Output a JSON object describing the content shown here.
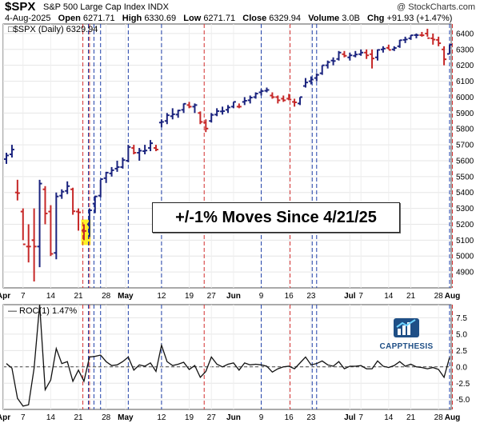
{
  "header": {
    "symbol": "$SPX",
    "description": "S&P 500 Large Cap Index INDX",
    "credit": "@ StockCharts.com",
    "date": "4-Aug-2025",
    "open_label": "Open",
    "open": "6271.71",
    "high_label": "High",
    "high": "6330.69",
    "low_label": "Low",
    "low": "6271.71",
    "close_label": "Close",
    "close": "6329.94",
    "volume_label": "Volume",
    "volume": "3.0B",
    "chg_label": "Chg",
    "chg": "+91.93 (+1.47%)"
  },
  "legend_main": "□$SPX (Daily) 6329.94",
  "legend_roc": "— ROC(1) 1.47%",
  "callout": "+/-1% Moves Since 4/21/25",
  "watermark": "CAPPTHESIS",
  "colors": {
    "up": "#1a237e",
    "down": "#c62828",
    "red_line": "#d32f2f",
    "blue_line": "#1e3fa8",
    "highlight": "#ffee00"
  },
  "chart_data": {
    "type": "ohlc",
    "main": {
      "y_ticks": [
        4900,
        5000,
        5100,
        5200,
        5300,
        5400,
        5500,
        5600,
        5700,
        5800,
        5900,
        6000,
        6100,
        6200,
        6300,
        6400
      ],
      "ylim": [
        4800,
        6460
      ],
      "bars": [
        [
          5610,
          5650,
          5580,
          5633,
          "u"
        ],
        [
          5640,
          5700,
          5620,
          5670,
          "u"
        ],
        [
          5400,
          5480,
          5350,
          5396,
          "d"
        ],
        [
          5280,
          5300,
          5100,
          5074,
          "d"
        ],
        [
          5060,
          5200,
          4960,
          5060,
          "d"
        ],
        [
          5100,
          5300,
          4840,
          5060,
          "d"
        ],
        [
          5060,
          5480,
          4930,
          5456,
          "u"
        ],
        [
          5420,
          5440,
          5200,
          5268,
          "d"
        ],
        [
          5280,
          5320,
          5000,
          5014,
          "d"
        ],
        [
          5020,
          5400,
          4980,
          5375,
          "u"
        ],
        [
          5380,
          5420,
          5360,
          5405,
          "u"
        ],
        [
          5410,
          5470,
          5390,
          5440,
          "u"
        ],
        [
          5420,
          5430,
          5260,
          5282,
          "d"
        ],
        [
          5280,
          5300,
          5160,
          5275,
          "d"
        ],
        [
          5160,
          5200,
          5100,
          5158,
          "d"
        ],
        [
          5200,
          5300,
          5120,
          5288,
          "u"
        ],
        [
          5330,
          5380,
          5270,
          5375,
          "u"
        ],
        [
          5380,
          5480,
          5370,
          5484,
          "u"
        ],
        [
          5490,
          5530,
          5460,
          5525,
          "u"
        ],
        [
          5520,
          5560,
          5500,
          5540,
          "u"
        ],
        [
          5550,
          5600,
          5530,
          5560,
          "u"
        ],
        [
          5560,
          5620,
          5550,
          5604,
          "u"
        ],
        [
          5600,
          5700,
          5590,
          5686,
          "u"
        ],
        [
          5680,
          5700,
          5640,
          5650,
          "d"
        ],
        [
          5650,
          5680,
          5600,
          5663,
          "u"
        ],
        [
          5660,
          5700,
          5640,
          5664,
          "u"
        ],
        [
          5680,
          5730,
          5660,
          5710,
          "u"
        ],
        [
          5680,
          5700,
          5660,
          5670,
          "d"
        ],
        [
          5840,
          5860,
          5810,
          5844,
          "u"
        ],
        [
          5850,
          5900,
          5830,
          5886,
          "u"
        ],
        [
          5880,
          5930,
          5860,
          5892,
          "u"
        ],
        [
          5890,
          5920,
          5870,
          5916,
          "u"
        ],
        [
          5920,
          5960,
          5900,
          5958,
          "u"
        ],
        [
          5950,
          5970,
          5930,
          5940,
          "d"
        ],
        [
          5940,
          5960,
          5900,
          5950,
          "u"
        ],
        [
          5900,
          5910,
          5830,
          5844,
          "d"
        ],
        [
          5840,
          5860,
          5780,
          5802,
          "d"
        ],
        [
          5850,
          5900,
          5840,
          5888,
          "u"
        ],
        [
          5890,
          5930,
          5880,
          5912,
          "u"
        ],
        [
          5910,
          5940,
          5890,
          5912,
          "u"
        ],
        [
          5920,
          5950,
          5900,
          5935,
          "u"
        ],
        [
          5940,
          5970,
          5930,
          5970,
          "u"
        ],
        [
          5940,
          5960,
          5930,
          5940,
          "d"
        ],
        [
          5970,
          6000,
          5950,
          5977,
          "u"
        ],
        [
          5980,
          6010,
          5960,
          5997,
          "u"
        ],
        [
          6000,
          6030,
          5990,
          6022,
          "u"
        ],
        [
          6030,
          6050,
          6010,
          6038,
          "u"
        ],
        [
          6040,
          6060,
          6030,
          6045,
          "u"
        ],
        [
          6010,
          6030,
          5990,
          6000,
          "d"
        ],
        [
          6000,
          6010,
          5960,
          5980,
          "d"
        ],
        [
          5990,
          6010,
          5970,
          5980,
          "d"
        ],
        [
          5990,
          6020,
          5980,
          5985,
          "d"
        ],
        [
          5970,
          5990,
          5940,
          5967,
          "d"
        ],
        [
          5960,
          6000,
          5950,
          6000,
          "u"
        ],
        [
          6070,
          6120,
          6060,
          6092,
          "u"
        ],
        [
          6100,
          6130,
          6080,
          6110,
          "u"
        ],
        [
          6120,
          6150,
          6100,
          6140,
          "u"
        ],
        [
          6150,
          6200,
          6140,
          6200,
          "u"
        ],
        [
          6200,
          6230,
          6180,
          6220,
          "u"
        ],
        [
          6230,
          6250,
          6200,
          6227,
          "u"
        ],
        [
          6240,
          6290,
          6230,
          6280,
          "u"
        ],
        [
          6270,
          6290,
          6250,
          6260,
          "d"
        ],
        [
          6250,
          6280,
          6230,
          6263,
          "u"
        ],
        [
          6260,
          6290,
          6250,
          6268,
          "u"
        ],
        [
          6270,
          6300,
          6260,
          6280,
          "u"
        ],
        [
          6280,
          6300,
          6240,
          6263,
          "d"
        ],
        [
          6270,
          6300,
          6180,
          6243,
          "d"
        ],
        [
          6250,
          6300,
          6230,
          6297,
          "u"
        ],
        [
          6300,
          6320,
          6280,
          6305,
          "u"
        ],
        [
          6310,
          6330,
          6300,
          6297,
          "d"
        ],
        [
          6300,
          6320,
          6290,
          6309,
          "u"
        ],
        [
          6320,
          6360,
          6310,
          6358,
          "u"
        ],
        [
          6360,
          6380,
          6340,
          6363,
          "u"
        ],
        [
          6370,
          6390,
          6360,
          6389,
          "u"
        ],
        [
          6390,
          6400,
          6370,
          6390,
          "u"
        ],
        [
          6390,
          6410,
          6380,
          6389,
          "d"
        ],
        [
          6400,
          6430,
          6380,
          6371,
          "d"
        ],
        [
          6370,
          6400,
          6330,
          6362,
          "d"
        ],
        [
          6360,
          6380,
          6320,
          6339,
          "d"
        ],
        [
          6300,
          6320,
          6200,
          6238,
          "d"
        ],
        [
          6271.71,
          6330.69,
          6271.71,
          6329.94,
          "u"
        ]
      ]
    },
    "roc": {
      "label": "ROC(1)",
      "y_ticks": [
        -5.0,
        -2.5,
        0.0,
        2.5,
        5.0,
        7.5
      ],
      "ylim": [
        -6.5,
        9.5
      ],
      "values": [
        0.5,
        -0.2,
        -4.8,
        -6.0,
        -5.8,
        -0.2,
        9.5,
        -3.5,
        -2.0,
        2.8,
        0.5,
        0.8,
        -2.2,
        -0.5,
        -2.2,
        1.5,
        1.6,
        1.8,
        0.8,
        0.2,
        0.3,
        0.8,
        1.5,
        -0.5,
        0.3,
        0.1,
        0.6,
        -0.7,
        3.3,
        0.8,
        0.2,
        0.4,
        0.7,
        -0.4,
        0.2,
        -1.6,
        -0.7,
        1.5,
        0.4,
        0.0,
        0.4,
        0.6,
        -0.5,
        0.6,
        0.3,
        0.4,
        0.3,
        0.1,
        -0.8,
        -0.3,
        0.0,
        0.1,
        -0.3,
        0.6,
        1.5,
        0.3,
        0.5,
        0.9,
        0.3,
        0.1,
        0.8,
        -0.3,
        0.1,
        0.1,
        0.2,
        -0.3,
        -0.3,
        0.9,
        0.1,
        -0.1,
        0.2,
        0.8,
        0.1,
        0.4,
        0.0,
        -0.1,
        -0.3,
        -0.1,
        -0.4,
        -1.6,
        1.47
      ]
    },
    "x_labels": [
      {
        "bar": -0.5,
        "text": "Apr",
        "month": true
      },
      {
        "bar": 3,
        "text": "7",
        "month": false
      },
      {
        "bar": 8,
        "text": "14",
        "month": false
      },
      {
        "bar": 13,
        "text": "21",
        "month": false
      },
      {
        "bar": 18,
        "text": "28",
        "month": false
      },
      {
        "bar": 21.5,
        "text": "May",
        "month": true
      },
      {
        "bar": 28,
        "text": "12",
        "month": false
      },
      {
        "bar": 33,
        "text": "19",
        "month": false
      },
      {
        "bar": 37,
        "text": "27",
        "month": false
      },
      {
        "bar": 41,
        "text": "Jun",
        "month": true
      },
      {
        "bar": 46,
        "text": "9",
        "month": false
      },
      {
        "bar": 51,
        "text": "16",
        "month": false
      },
      {
        "bar": 55,
        "text": "23",
        "month": false
      },
      {
        "bar": 62,
        "text": "Jul",
        "month": true
      },
      {
        "bar": 64,
        "text": "7",
        "month": false
      },
      {
        "bar": 69,
        "text": "14",
        "month": false
      },
      {
        "bar": 73,
        "text": "21",
        "month": false
      },
      {
        "bar": 78,
        "text": "28",
        "month": false
      },
      {
        "bar": 80.5,
        "text": "Aug",
        "month": true
      }
    ],
    "red_lines": [
      13.8,
      15.0,
      35.7,
      51.2,
      80.5
    ],
    "blue_lines": [
      14.8,
      15.8,
      17.0,
      22.0,
      28.0,
      46.0,
      55.2,
      56.0,
      80.0
    ],
    "highlight_bars": [
      13.5,
      15.2
    ],
    "highlight_range": [
      5070,
      5230
    ]
  }
}
